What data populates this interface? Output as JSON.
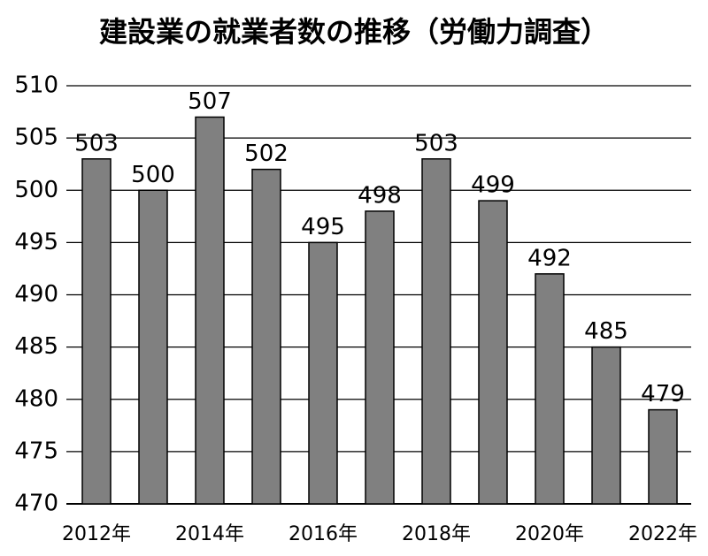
{
  "chart_data": {
    "type": "bar",
    "title": "建設業の就業者数の推移（労働力調査）",
    "categories": [
      "2012年",
      null,
      "2014年",
      null,
      "2016年",
      null,
      "2018年",
      null,
      "2020年",
      null,
      "2022年"
    ],
    "values": [
      503,
      500,
      507,
      502,
      495,
      498,
      503,
      499,
      492,
      485,
      479
    ],
    "color": "#808080",
    "ylim": [
      470,
      510
    ],
    "yticks": [
      470,
      475,
      480,
      485,
      490,
      495,
      500,
      505,
      510
    ],
    "grid": true
  }
}
